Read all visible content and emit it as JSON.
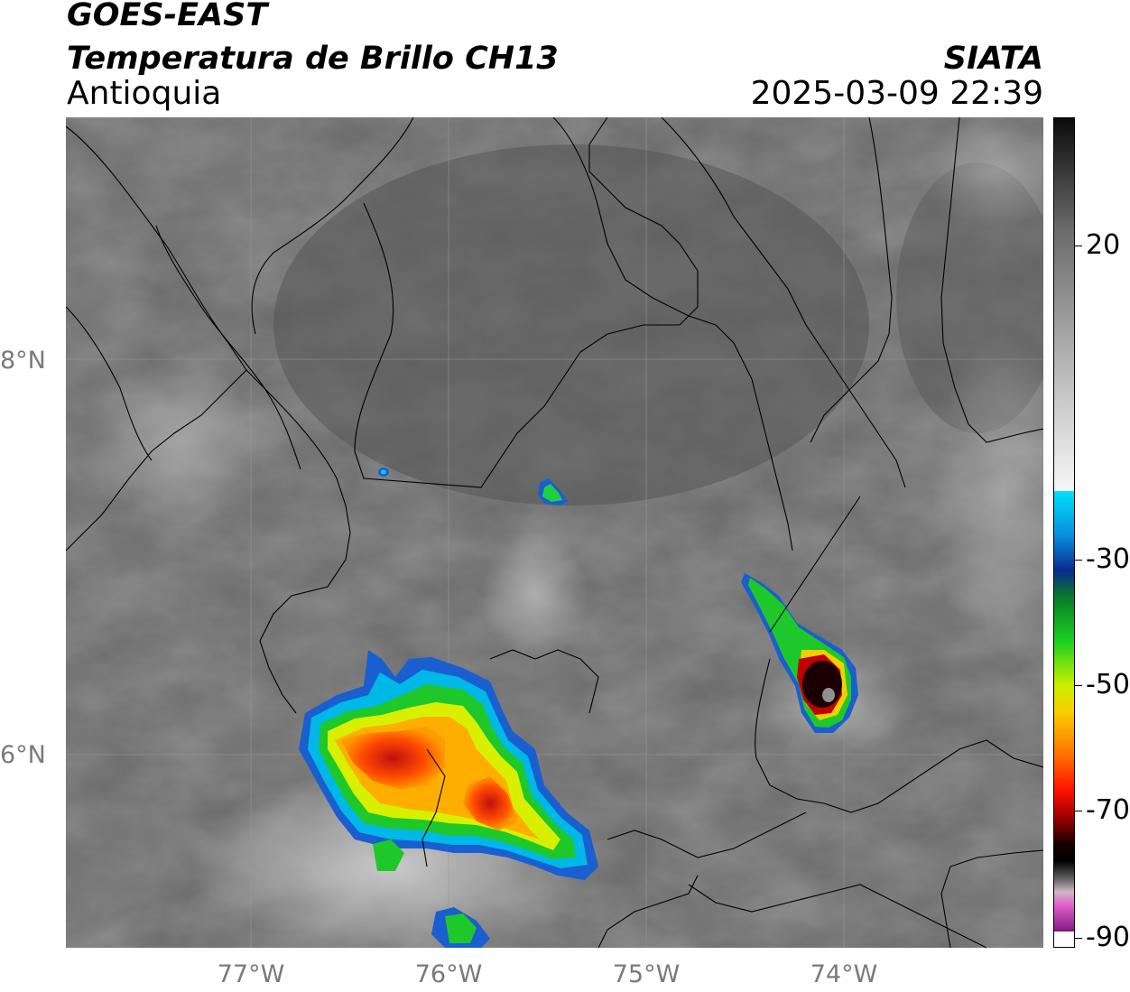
{
  "header": {
    "satellite": "GOES-EAST",
    "product": "Temperatura de Brillo CH13",
    "region": "Antioquia",
    "agency": "SIATA",
    "datetime": "2025-03-09 22:39"
  },
  "map": {
    "lat_labels": [
      "8°N",
      "6°N"
    ],
    "lon_labels": [
      "77°W",
      "76°W",
      "75°W",
      "74°W"
    ],
    "gridlines": true
  },
  "colorbar": {
    "tick_labels": [
      "20",
      "-30",
      "-50",
      "-70",
      "-90"
    ],
    "unit": "",
    "colors": {
      "warm_gray_top": "#111111",
      "light_gray": "#e8e8e8",
      "cyan": "#00d8f0",
      "blue": "#0a3a9a",
      "green": "#18c020",
      "yellow": "#f0f000",
      "orange": "#ff8000",
      "red": "#e01010",
      "dark_red": "#600000",
      "black": "#000000",
      "pink": "#e040c0",
      "purple": "#8a1a8a"
    }
  }
}
